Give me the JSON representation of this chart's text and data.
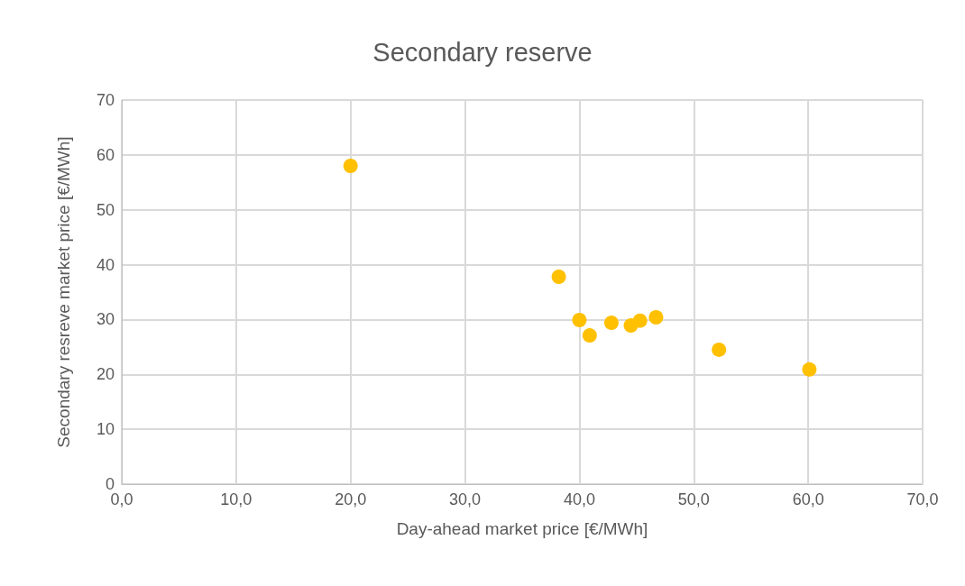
{
  "chart_data": {
    "type": "scatter",
    "title": "Secondary reserve",
    "xlabel": "Day-ahead market price [€/MWh]",
    "ylabel": "Secondary resreve market price [€/MWh]",
    "x": [
      20.0,
      38.2,
      40.0,
      40.9,
      42.8,
      44.5,
      45.3,
      46.7,
      52.2,
      60.1
    ],
    "series": [
      {
        "color": "#ffc000",
        "values": [
          58.0,
          37.8,
          29.9,
          27.1,
          29.4,
          28.9,
          29.8,
          30.4,
          24.5,
          20.9
        ]
      }
    ],
    "xlim": [
      0,
      70
    ],
    "xticks": [
      {
        "value": 0,
        "label": "0,0"
      },
      {
        "value": 10,
        "label": "10,0"
      },
      {
        "value": 20,
        "label": "20,0"
      },
      {
        "value": 30,
        "label": "30,0"
      },
      {
        "value": 40,
        "label": "40,0"
      },
      {
        "value": 50,
        "label": "50,0"
      },
      {
        "value": 60,
        "label": "60,0"
      },
      {
        "value": 70,
        "label": "70,0"
      }
    ],
    "ylim": [
      0,
      70
    ],
    "yticks": [
      0,
      10,
      20,
      30,
      40,
      50,
      60,
      70
    ],
    "grid": true,
    "marker": "circle"
  }
}
